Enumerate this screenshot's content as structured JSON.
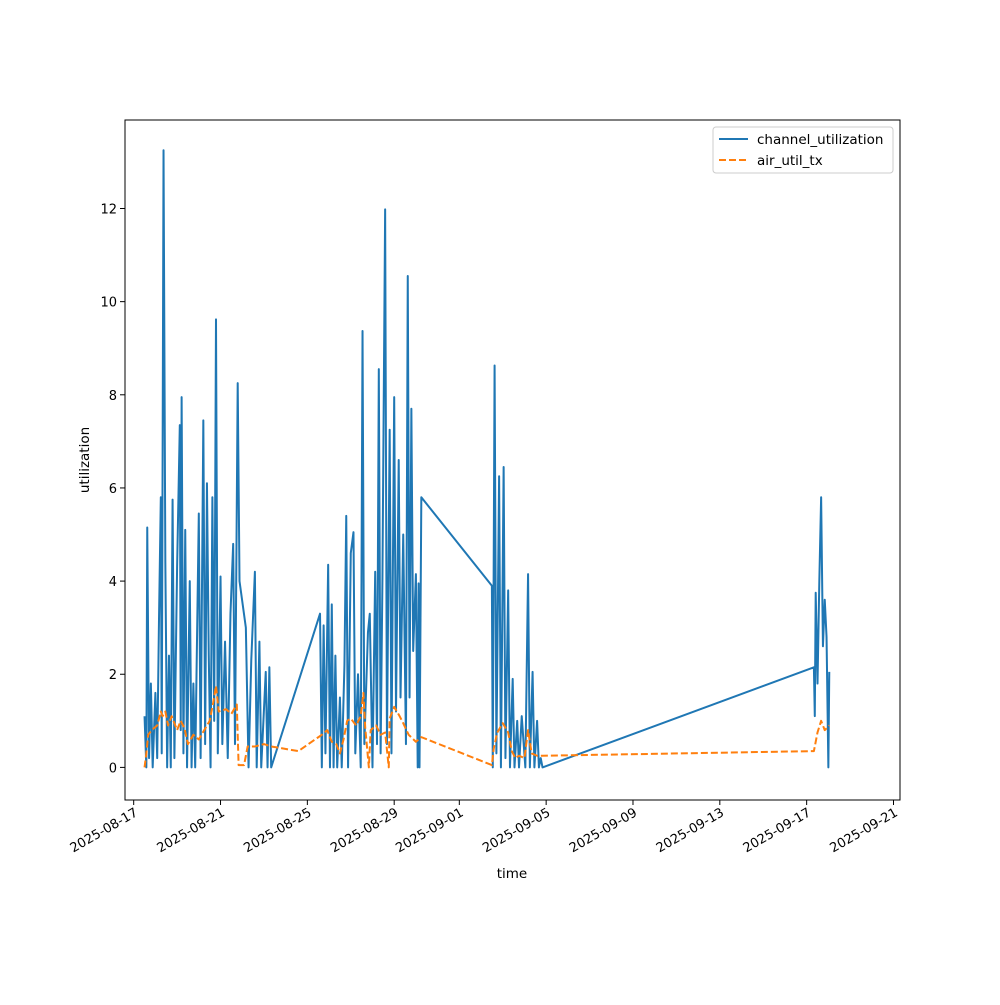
{
  "chart_data": {
    "type": "line",
    "xlabel": "time",
    "ylabel": "utilization",
    "x_type": "date",
    "xlim": [
      "2025-08-17",
      "2025-09-21"
    ],
    "ylim": [
      -0.7,
      13.9
    ],
    "x_ticks": [
      "2025-08-17",
      "2025-08-21",
      "2025-08-25",
      "2025-08-29",
      "2025-09-01",
      "2025-09-05",
      "2025-09-09",
      "2025-09-13",
      "2025-09-17",
      "2025-09-21"
    ],
    "y_ticks": [
      0,
      2,
      4,
      6,
      8,
      10,
      12
    ],
    "legend_position": "top-right",
    "grid": false,
    "series": [
      {
        "name": "channel_utilization",
        "color": "#1f77b4",
        "style": "solid",
        "points": [
          [
            "2025-08-17T12:00",
            1.1
          ],
          [
            "2025-08-17T14:00",
            0.0
          ],
          [
            "2025-08-17T15:00",
            5.15
          ],
          [
            "2025-08-17T17:00",
            0.2
          ],
          [
            "2025-08-17T19:00",
            1.8
          ],
          [
            "2025-08-17T21:00",
            0.0
          ],
          [
            "2025-08-18T00:00",
            1.6
          ],
          [
            "2025-08-18T02:00",
            0.2
          ],
          [
            "2025-08-18T04:00",
            3.2
          ],
          [
            "2025-08-18T06:00",
            5.8
          ],
          [
            "2025-08-18T07:00",
            0.3
          ],
          [
            "2025-08-18T09:00",
            13.25
          ],
          [
            "2025-08-18T11:00",
            4.4
          ],
          [
            "2025-08-18T13:00",
            0.0
          ],
          [
            "2025-08-18T15:00",
            2.4
          ],
          [
            "2025-08-18T17:00",
            0.0
          ],
          [
            "2025-08-18T19:00",
            5.75
          ],
          [
            "2025-08-18T21:00",
            0.2
          ],
          [
            "2025-08-19T00:00",
            4.3
          ],
          [
            "2025-08-19T03:00",
            7.35
          ],
          [
            "2025-08-19T04:00",
            0.8
          ],
          [
            "2025-08-19T05:00",
            7.95
          ],
          [
            "2025-08-19T07:00",
            0.3
          ],
          [
            "2025-08-19T09:00",
            5.1
          ],
          [
            "2025-08-19T11:00",
            0.0
          ],
          [
            "2025-08-19T14:00",
            4.0
          ],
          [
            "2025-08-19T16:00",
            0.0
          ],
          [
            "2025-08-19T18:00",
            1.8
          ],
          [
            "2025-08-19T20:00",
            0.0
          ],
          [
            "2025-08-20T00:00",
            5.45
          ],
          [
            "2025-08-20T02:00",
            0.2
          ],
          [
            "2025-08-20T05:00",
            7.45
          ],
          [
            "2025-08-20T07:00",
            0.5
          ],
          [
            "2025-08-20T09:00",
            6.1
          ],
          [
            "2025-08-20T11:00",
            2.4
          ],
          [
            "2025-08-20T13:00",
            0.0
          ],
          [
            "2025-08-20T15:00",
            5.8
          ],
          [
            "2025-08-20T17:00",
            1.0
          ],
          [
            "2025-08-20T19:00",
            9.62
          ],
          [
            "2025-08-20T21:00",
            0.3
          ],
          [
            "2025-08-21T00:00",
            4.1
          ],
          [
            "2025-08-21T02:00",
            0.5
          ],
          [
            "2025-08-21T05:00",
            2.7
          ],
          [
            "2025-08-21T08:00",
            0.2
          ],
          [
            "2025-08-21T11:00",
            3.3
          ],
          [
            "2025-08-21T14:00",
            4.8
          ],
          [
            "2025-08-21T16:00",
            0.5
          ],
          [
            "2025-08-21T19:00",
            8.25
          ],
          [
            "2025-08-21T21:00",
            4.0
          ],
          [
            "2025-08-22T04:00",
            3.0
          ],
          [
            "2025-08-22T07:00",
            0.0
          ],
          [
            "2025-08-22T10:00",
            2.3
          ],
          [
            "2025-08-22T14:00",
            4.2
          ],
          [
            "2025-08-22T16:00",
            0.0
          ],
          [
            "2025-08-22T19:00",
            2.7
          ],
          [
            "2025-08-22T21:00",
            0.0
          ],
          [
            "2025-08-23T02:00",
            2.05
          ],
          [
            "2025-08-23T04:00",
            0.0
          ],
          [
            "2025-08-23T06:00",
            2.15
          ],
          [
            "2025-08-23T08:00",
            0.0
          ],
          [
            "2025-08-25T14:00",
            3.3
          ],
          [
            "2025-08-25T16:00",
            0.0
          ],
          [
            "2025-08-25T18:00",
            3.05
          ],
          [
            "2025-08-25T20:00",
            0.3
          ],
          [
            "2025-08-25T23:00",
            4.35
          ],
          [
            "2025-08-26T01:00",
            0.0
          ],
          [
            "2025-08-26T03:00",
            3.5
          ],
          [
            "2025-08-26T05:00",
            0.0
          ],
          [
            "2025-08-26T07:00",
            2.4
          ],
          [
            "2025-08-26T09:00",
            0.0
          ],
          [
            "2025-08-26T12:00",
            1.5
          ],
          [
            "2025-08-26T14:00",
            0.0
          ],
          [
            "2025-08-26T17:00",
            2.2
          ],
          [
            "2025-08-26T19:00",
            5.4
          ],
          [
            "2025-08-26T21:00",
            0.0
          ],
          [
            "2025-08-27T00:00",
            4.6
          ],
          [
            "2025-08-27T03:00",
            5.05
          ],
          [
            "2025-08-27T05:00",
            0.3
          ],
          [
            "2025-08-27T08:00",
            2.0
          ],
          [
            "2025-08-27T11:00",
            0.0
          ],
          [
            "2025-08-27T13:00",
            9.37
          ],
          [
            "2025-08-27T15:00",
            0.5
          ],
          [
            "2025-08-27T19:00",
            2.9
          ],
          [
            "2025-08-27T21:00",
            3.3
          ],
          [
            "2025-08-28T00:00",
            0.0
          ],
          [
            "2025-08-28T03:00",
            4.2
          ],
          [
            "2025-08-28T05:00",
            0.5
          ],
          [
            "2025-08-28T07:00",
            8.55
          ],
          [
            "2025-08-28T09:00",
            0.3
          ],
          [
            "2025-08-28T11:00",
            4.05
          ],
          [
            "2025-08-28T14:00",
            11.98
          ],
          [
            "2025-08-28T16:00",
            0.5
          ],
          [
            "2025-08-28T19:00",
            7.25
          ],
          [
            "2025-08-28T21:00",
            0.3
          ],
          [
            "2025-08-29T00:00",
            7.95
          ],
          [
            "2025-08-29T02:00",
            1.2
          ],
          [
            "2025-08-29T05:00",
            6.6
          ],
          [
            "2025-08-29T07:00",
            1.5
          ],
          [
            "2025-08-29T10:00",
            5.0
          ],
          [
            "2025-08-29T13:00",
            0.5
          ],
          [
            "2025-08-29T15:00",
            10.55
          ],
          [
            "2025-08-29T17:00",
            1.5
          ],
          [
            "2025-08-29T19:00",
            7.7
          ],
          [
            "2025-08-29T21:00",
            2.5
          ],
          [
            "2025-08-30T00:00",
            4.15
          ],
          [
            "2025-08-30T02:00",
            0.0
          ],
          [
            "2025-08-30T03:00",
            3.95
          ],
          [
            "2025-08-30T04:00",
            0.0
          ],
          [
            "2025-08-30T06:00",
            5.8
          ],
          [
            "2025-09-02T12:00",
            3.9
          ],
          [
            "2025-09-02T13:00",
            0.0
          ],
          [
            "2025-09-02T15:00",
            8.63
          ],
          [
            "2025-09-02T17:00",
            0.3
          ],
          [
            "2025-09-02T20:00",
            6.25
          ],
          [
            "2025-09-02T22:00",
            0.0
          ],
          [
            "2025-09-03T01:00",
            6.45
          ],
          [
            "2025-09-03T03:00",
            0.2
          ],
          [
            "2025-09-03T06:00",
            3.8
          ],
          [
            "2025-09-03T08:00",
            0.0
          ],
          [
            "2025-09-03T11:00",
            1.9
          ],
          [
            "2025-09-03T13:00",
            0.0
          ],
          [
            "2025-09-03T16:00",
            1.0
          ],
          [
            "2025-09-03T18:00",
            0.0
          ],
          [
            "2025-09-03T21:00",
            1.1
          ],
          [
            "2025-09-04T01:00",
            0.0
          ],
          [
            "2025-09-04T04:00",
            4.15
          ],
          [
            "2025-09-04T06:00",
            0.0
          ],
          [
            "2025-09-04T09:00",
            2.05
          ],
          [
            "2025-09-04T11:00",
            0.0
          ],
          [
            "2025-09-04T14:00",
            1.0
          ],
          [
            "2025-09-04T16:00",
            0.0
          ],
          [
            "2025-09-04T18:00",
            0.2
          ],
          [
            "2025-09-04T20:00",
            0.0
          ],
          [
            "2025-09-17T08:00",
            2.15
          ],
          [
            "2025-09-17T09:00",
            1.1
          ],
          [
            "2025-09-17T10:00",
            3.75
          ],
          [
            "2025-09-17T12:00",
            1.8
          ],
          [
            "2025-09-17T14:00",
            4.0
          ],
          [
            "2025-09-17T16:00",
            5.8
          ],
          [
            "2025-09-17T18:00",
            2.6
          ],
          [
            "2025-09-17T20:00",
            3.6
          ],
          [
            "2025-09-17T22:00",
            2.8
          ],
          [
            "2025-09-18T00:00",
            0.0
          ],
          [
            "2025-09-18T01:00",
            2.05
          ]
        ]
      },
      {
        "name": "air_util_tx",
        "color": "#ff7f0e",
        "style": "dashed",
        "points": [
          [
            "2025-08-17T12:00",
            0.0
          ],
          [
            "2025-08-17T14:00",
            0.3
          ],
          [
            "2025-08-17T16:00",
            0.7
          ],
          [
            "2025-08-17T20:00",
            0.8
          ],
          [
            "2025-08-18T02:00",
            0.9
          ],
          [
            "2025-08-18T06:00",
            1.2
          ],
          [
            "2025-08-18T08:00",
            1.1
          ],
          [
            "2025-08-18T11:00",
            1.2
          ],
          [
            "2025-08-18T14:00",
            0.9
          ],
          [
            "2025-08-18T18:00",
            1.1
          ],
          [
            "2025-08-19T00:00",
            0.8
          ],
          [
            "2025-08-19T04:00",
            1.0
          ],
          [
            "2025-08-19T08:00",
            0.85
          ],
          [
            "2025-08-19T12:00",
            0.5
          ],
          [
            "2025-08-19T18:00",
            0.7
          ],
          [
            "2025-08-20T00:00",
            0.6
          ],
          [
            "2025-08-20T06:00",
            0.8
          ],
          [
            "2025-08-20T12:00",
            1.0
          ],
          [
            "2025-08-20T16:00",
            1.4
          ],
          [
            "2025-08-20T19:00",
            1.75
          ],
          [
            "2025-08-20T22:00",
            1.2
          ],
          [
            "2025-08-21T06:00",
            1.25
          ],
          [
            "2025-08-21T12:00",
            1.15
          ],
          [
            "2025-08-21T18:00",
            1.35
          ],
          [
            "2025-08-21T20:00",
            0.05
          ],
          [
            "2025-08-22T02:00",
            0.05
          ],
          [
            "2025-08-22T06:00",
            0.45
          ],
          [
            "2025-08-22T14:00",
            0.45
          ],
          [
            "2025-08-23T00:00",
            0.5
          ],
          [
            "2025-08-23T08:00",
            0.45
          ],
          [
            "2025-08-24T14:00",
            0.35
          ],
          [
            "2025-08-25T16:00",
            0.7
          ],
          [
            "2025-08-25T22:00",
            0.8
          ],
          [
            "2025-08-26T03:00",
            0.55
          ],
          [
            "2025-08-26T08:00",
            0.5
          ],
          [
            "2025-08-26T12:00",
            0.3
          ],
          [
            "2025-08-26T16:00",
            0.6
          ],
          [
            "2025-08-26T20:00",
            1.0
          ],
          [
            "2025-08-27T00:00",
            1.05
          ],
          [
            "2025-08-27T06:00",
            0.9
          ],
          [
            "2025-08-27T11:00",
            1.1
          ],
          [
            "2025-08-27T14:00",
            1.6
          ],
          [
            "2025-08-27T16:00",
            0.85
          ],
          [
            "2025-08-27T20:00",
            0.0
          ],
          [
            "2025-08-27T22:00",
            0.8
          ],
          [
            "2025-08-28T04:00",
            0.9
          ],
          [
            "2025-08-28T09:00",
            0.7
          ],
          [
            "2025-08-28T14:00",
            0.75
          ],
          [
            "2025-08-28T18:00",
            0.0
          ],
          [
            "2025-08-28T19:00",
            1.05
          ],
          [
            "2025-08-29T00:00",
            1.3
          ],
          [
            "2025-08-29T06:00",
            1.1
          ],
          [
            "2025-08-29T10:00",
            0.95
          ],
          [
            "2025-08-29T16:00",
            0.7
          ],
          [
            "2025-08-30T00:00",
            0.55
          ],
          [
            "2025-08-30T06:00",
            0.65
          ],
          [
            "2025-09-02T12:00",
            0.05
          ],
          [
            "2025-09-02T14:00",
            0.4
          ],
          [
            "2025-09-02T18:00",
            0.75
          ],
          [
            "2025-09-03T00:00",
            0.95
          ],
          [
            "2025-09-03T06:00",
            0.75
          ],
          [
            "2025-09-03T10:00",
            0.35
          ],
          [
            "2025-09-03T14:00",
            0.2
          ],
          [
            "2025-09-03T18:00",
            0.25
          ],
          [
            "2025-09-04T00:00",
            0.2
          ],
          [
            "2025-09-04T04:00",
            0.8
          ],
          [
            "2025-09-04T08:00",
            0.3
          ],
          [
            "2025-09-04T14:00",
            0.25
          ],
          [
            "2025-09-04T20:00",
            0.25
          ],
          [
            "2025-09-17T08:00",
            0.35
          ],
          [
            "2025-09-17T12:00",
            0.75
          ],
          [
            "2025-09-17T16:00",
            1.0
          ],
          [
            "2025-09-17T20:00",
            0.8
          ],
          [
            "2025-09-18T01:00",
            0.9
          ]
        ]
      }
    ]
  }
}
